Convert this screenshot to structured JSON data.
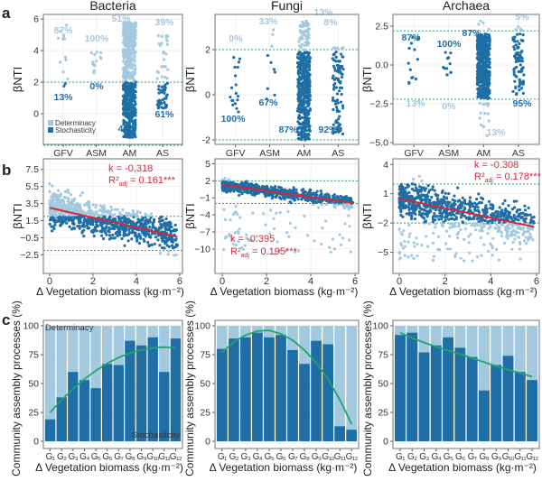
{
  "panel_labels": [
    "a",
    "b",
    "c"
  ],
  "colors": {
    "determinacy": "#a3c9df",
    "stochasticity": "#1f6ea6",
    "threshold": "#2aa876",
    "regression": "#d6273b",
    "fit_curve": "#1fa46a"
  },
  "chart_data": [
    {
      "panel": "a",
      "type": "scatter",
      "title": "Bacteria",
      "ylabel": "βNTI",
      "categories": [
        "GFV",
        "ASM",
        "AM",
        "AS"
      ],
      "yticks": [
        "0",
        "2",
        "4",
        "6"
      ],
      "ylim": [
        -1.94,
        6.29
      ],
      "thresholds": [
        2,
        -2
      ],
      "grid": true,
      "legend": {
        "placement": "bottom-left",
        "entries": [
          "Determinacy",
          "Stochasticity"
        ]
      },
      "groups": [
        {
          "determinacy_pct": "87%",
          "stochasticity_pct": "13%",
          "determinacy_range": [
            2.2,
            5.9
          ],
          "stochasticity_range": [
            1.4,
            1.95
          ]
        },
        {
          "determinacy_pct": "100%",
          "stochasticity_pct": "0%",
          "determinacy_range": [
            2.5,
            4.0
          ],
          "stochasticity_range": null
        },
        {
          "determinacy_pct": "51%",
          "stochasticity_pct": "49%",
          "determinacy_range": [
            2.0,
            5.8
          ],
          "stochasticity_range": [
            -1.5,
            2.0
          ]
        },
        {
          "determinacy_pct": "39%",
          "stochasticity_pct": "61%",
          "determinacy_range": [
            2.0,
            5.0
          ],
          "stochasticity_range": [
            0.3,
            2.0
          ]
        }
      ]
    },
    {
      "panel": "a",
      "type": "scatter",
      "title": "Fungi",
      "ylabel": "βNTI",
      "categories": [
        "GFV",
        "ASM",
        "AM",
        "AS"
      ],
      "yticks": [
        "-2",
        "0",
        "2"
      ],
      "ylim": [
        -2.2,
        3.56
      ],
      "thresholds": [
        2,
        -2
      ],
      "grid": true,
      "groups": [
        {
          "determinacy_pct": "0%",
          "stochasticity_pct": "100%",
          "determinacy_range": null,
          "stochasticity_range": [
            -0.8,
            1.7
          ]
        },
        {
          "determinacy_pct": "33%",
          "stochasticity_pct": "67%",
          "determinacy_range": [
            2.1,
            2.9
          ],
          "stochasticity_range": [
            -0.4,
            1.8
          ]
        },
        {
          "determinacy_pct": "13%",
          "stochasticity_pct": "87%",
          "determinacy_range": [
            2.0,
            3.3
          ],
          "stochasticity_range": [
            -2.0,
            1.9
          ]
        },
        {
          "determinacy_pct": "8%",
          "stochasticity_pct": "92%",
          "determinacy_range": [
            2.0,
            2.2
          ],
          "stochasticity_range": [
            -1.8,
            1.9
          ]
        }
      ]
    },
    {
      "panel": "a",
      "type": "scatter",
      "title": "Archaea",
      "ylabel": "βNTI",
      "categories": [
        "GFV",
        "ASM",
        "AM",
        "AS"
      ],
      "yticks": [
        "−5.0",
        "−2.5",
        "0.0",
        "2.5"
      ],
      "ylim": [
        -5.12,
        3.26
      ],
      "thresholds": [
        2.2,
        -2.2
      ],
      "grid": true,
      "groups": [
        {
          "determinacy_pct": "13%",
          "stochasticity_pct": "87%",
          "determinacy_range": [
            -2.3,
            -2.3
          ],
          "stochasticity_range": [
            -1.5,
            2.0
          ]
        },
        {
          "determinacy_pct": "0%",
          "stochasticity_pct": "100%",
          "determinacy_range": null,
          "stochasticity_range": [
            -1.5,
            0.9
          ]
        },
        {
          "determinacy_pct": "13%",
          "stochasticity_pct": "87%",
          "determinacy_range": [
            -4.7,
            3.0
          ],
          "stochasticity_range": [
            -2.2,
            2.0
          ]
        },
        {
          "determinacy_pct": "5%",
          "stochasticity_pct": "95%",
          "determinacy_range": [
            2.2,
            2.6
          ],
          "stochasticity_range": [
            -1.9,
            2.0
          ]
        }
      ]
    },
    {
      "panel": "b",
      "type": "scatter",
      "xlabel": "Δ Vegetation biomass (kg·m⁻²)",
      "ylabel": "βNTI",
      "xticks": [
        "0",
        "2",
        "4",
        "6"
      ],
      "xlim": [
        -0.29,
        6.13
      ],
      "yticks": [
        "−2.5",
        "−0.5",
        "1.5",
        "3.5",
        "5.5",
        "7.5"
      ],
      "ylim": [
        -4.69,
        8.74
      ],
      "thresholds": [
        2,
        -2
      ],
      "grid": true,
      "regression": {
        "x": [
          0,
          5.9
        ],
        "y": [
          3.0,
          -0.4
        ]
      },
      "annotation": {
        "k": "k = -0.318",
        "r2_prefix": "R²",
        "r2_sub": "adj",
        "r2_value": " = 0.161***"
      }
    },
    {
      "panel": "b",
      "type": "scatter",
      "xlabel": "Δ Vegetation biomass (kg·m⁻²)",
      "ylabel": "βNTI",
      "xticks": [
        "0",
        "2",
        "4",
        "6"
      ],
      "xlim": [
        -0.33,
        6.16
      ],
      "yticks": [
        "−10",
        "−7",
        "−4",
        "−1",
        "2",
        "5"
      ],
      "ylim": [
        -14.3,
        5.86
      ],
      "thresholds": [
        2,
        -2
      ],
      "grid": true,
      "regression": {
        "x": [
          0,
          5.9
        ],
        "y": [
          1.3,
          -1.9
        ]
      },
      "annotation": {
        "k": "k = -0.395",
        "r2_prefix": "R²",
        "r2_sub": "adj",
        "r2_value": " = 0.195***"
      }
    },
    {
      "panel": "b",
      "type": "scatter",
      "xlabel": "Δ Vegetation biomass (kg·m⁻²)",
      "ylabel": "βNTI",
      "xticks": [
        "0",
        "2",
        "4",
        "6"
      ],
      "xlim": [
        -0.28,
        6.12
      ],
      "yticks": [
        "−5",
        "−2",
        "1",
        "4"
      ],
      "ylim": [
        -7.17,
        4.58
      ],
      "thresholds": [
        2,
        -2
      ],
      "grid": true,
      "regression": {
        "x": [
          0,
          5.9
        ],
        "y": [
          0.5,
          -2.4
        ]
      },
      "annotation": {
        "k": "k = -0.308",
        "r2_prefix": "R²",
        "r2_sub": "adj",
        "r2_value": " = 0.178***"
      }
    },
    {
      "panel": "c",
      "type": "bar",
      "stacked": true,
      "xlabel": "Δ Vegetation biomass (kg·m⁻²)",
      "ylabel": "Community assembly processes (%)",
      "categories": [
        "G₁",
        "G₂",
        "G₃",
        "G₄",
        "G₅",
        "G₆",
        "G₇",
        "G₈",
        "G₉",
        "G₁₀",
        "G₁₁",
        "G₁₂"
      ],
      "yticks": [
        "0",
        "25",
        "50",
        "75",
        "100"
      ],
      "ylim": [
        0,
        100
      ],
      "top_label": "Determinacy",
      "bottom_label": "Stochasticity",
      "stochasticity": [
        19,
        38,
        60,
        53,
        46,
        67,
        66,
        87,
        83,
        90,
        60,
        89
      ],
      "fit": [
        25,
        35.7,
        45.3,
        53.8,
        61.2,
        67.4,
        72.5,
        76.4,
        79.2,
        80.9,
        81.5,
        80.9
      ]
    },
    {
      "panel": "c",
      "type": "bar",
      "stacked": true,
      "xlabel": "Δ Vegetation biomass (kg·m⁻²)",
      "ylabel": "Community assembly processes (%)",
      "categories": [
        "G₁",
        "G₂",
        "G₃",
        "G₄",
        "G₅",
        "G₆",
        "G₇",
        "G₈",
        "G₉",
        "G₁₀",
        "G₁₁",
        "G₁₂"
      ],
      "yticks": [
        "0",
        "25",
        "50",
        "75",
        "100"
      ],
      "ylim": [
        0,
        100
      ],
      "stochasticity": [
        80,
        89,
        90,
        94,
        90,
        92,
        79,
        67,
        87,
        84,
        13,
        10
      ],
      "fit": [
        77,
        86,
        92,
        95.5,
        96,
        93,
        87.5,
        79,
        68,
        54,
        36,
        15
      ]
    },
    {
      "panel": "c",
      "type": "bar",
      "stacked": true,
      "xlabel": "Δ Vegetation biomass (kg·m⁻²)",
      "ylabel": "Community assembly processes (%)",
      "categories": [
        "G₁",
        "G₂",
        "G₃",
        "G₄",
        "G₅",
        "G₆",
        "G₇",
        "G₈",
        "G₉",
        "G₁₀",
        "G₁₁",
        "G₁₂"
      ],
      "yticks": [
        "0",
        "25",
        "50",
        "75",
        "100"
      ],
      "ylim": [
        0,
        100
      ],
      "stochasticity": [
        92,
        94,
        77,
        83,
        90,
        81,
        73,
        44,
        66,
        74,
        60,
        53
      ],
      "fit": [
        94,
        89.5,
        85.5,
        82,
        78.5,
        75.5,
        72,
        68.5,
        65,
        62,
        59,
        56
      ]
    }
  ]
}
